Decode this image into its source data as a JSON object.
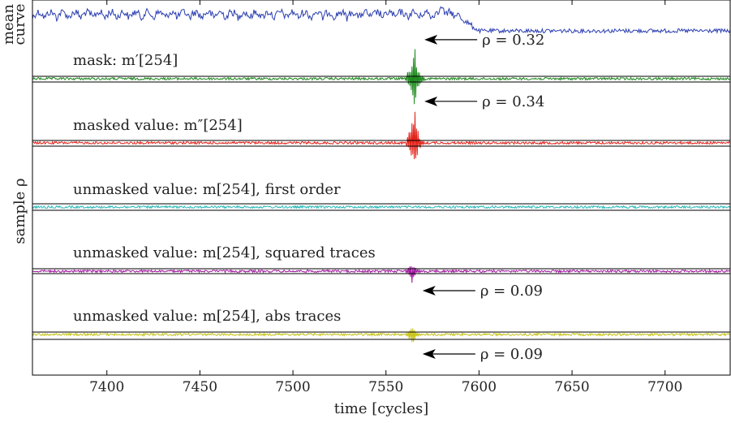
{
  "chart_data": {
    "type": "line",
    "xlabel": "time [cycles]",
    "ylabel": "sample ρ",
    "top_ylabel_line1": "mean",
    "top_ylabel_line2": "curve",
    "xlim": [
      7360,
      7735
    ],
    "xticks": [
      7400,
      7450,
      7500,
      7550,
      7600,
      7650,
      7700
    ],
    "xtick_labels": [
      "7400",
      "7450",
      "7500",
      "7550",
      "7600",
      "7650",
      "7700"
    ],
    "grid": false,
    "colors": {
      "mean": "#2a3eb1",
      "mask": "#1f8a1f",
      "masked": "#e2231a",
      "first": "#2ab9b9",
      "squared": "#a0179f",
      "abs": "#c8c41a",
      "ref": "#000000",
      "arrow": "#000000"
    },
    "mean_curve": {
      "name": "mean curve",
      "high_level_until": 7590,
      "low_level_from": 7600,
      "spike_x": 7580
    },
    "panels": [
      {
        "key": "mask",
        "label": "mask: m′[254]",
        "peak_x": 7565,
        "peak_rho": 0.32,
        "annotation": "ρ = 0.32"
      },
      {
        "key": "masked",
        "label": "masked value: m″[254]",
        "peak_x": 7565,
        "peak_rho": 0.34,
        "annotation": "ρ = 0.34"
      },
      {
        "key": "first",
        "label": "unmasked value: m[254], first order",
        "peak_x": null,
        "peak_rho": null,
        "annotation": ""
      },
      {
        "key": "squared",
        "label": "unmasked value: m[254], squared traces",
        "peak_x": 7564,
        "peak_rho": -0.09,
        "annotation": "ρ = 0.09"
      },
      {
        "key": "abs",
        "label": "unmasked value: m[254], abs traces",
        "peak_x": 7564,
        "peak_rho": -0.09,
        "annotation": "ρ = 0.09"
      }
    ]
  }
}
